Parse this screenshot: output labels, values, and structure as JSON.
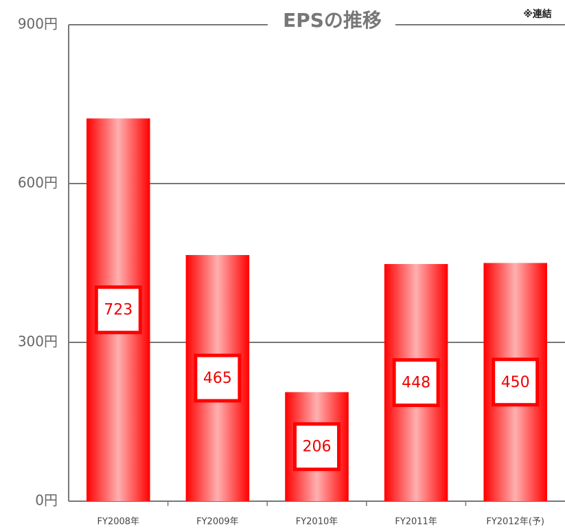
{
  "chart_data": {
    "type": "bar",
    "title": "EPSの推移",
    "note": "※連結",
    "categories": [
      "FY2008年",
      "FY2009年",
      "FY2010年",
      "FY2011年",
      "FY2012年(予)"
    ],
    "values": [
      723,
      465,
      206,
      448,
      450
    ],
    "color": "#ff0000",
    "ylim": [
      0,
      900
    ],
    "yticks": [
      {
        "value": 0,
        "label": "0円"
      },
      {
        "value": 300,
        "label": "300円"
      },
      {
        "value": 600,
        "label": "600円"
      },
      {
        "value": 900,
        "label": "900円"
      }
    ],
    "grid": true
  }
}
